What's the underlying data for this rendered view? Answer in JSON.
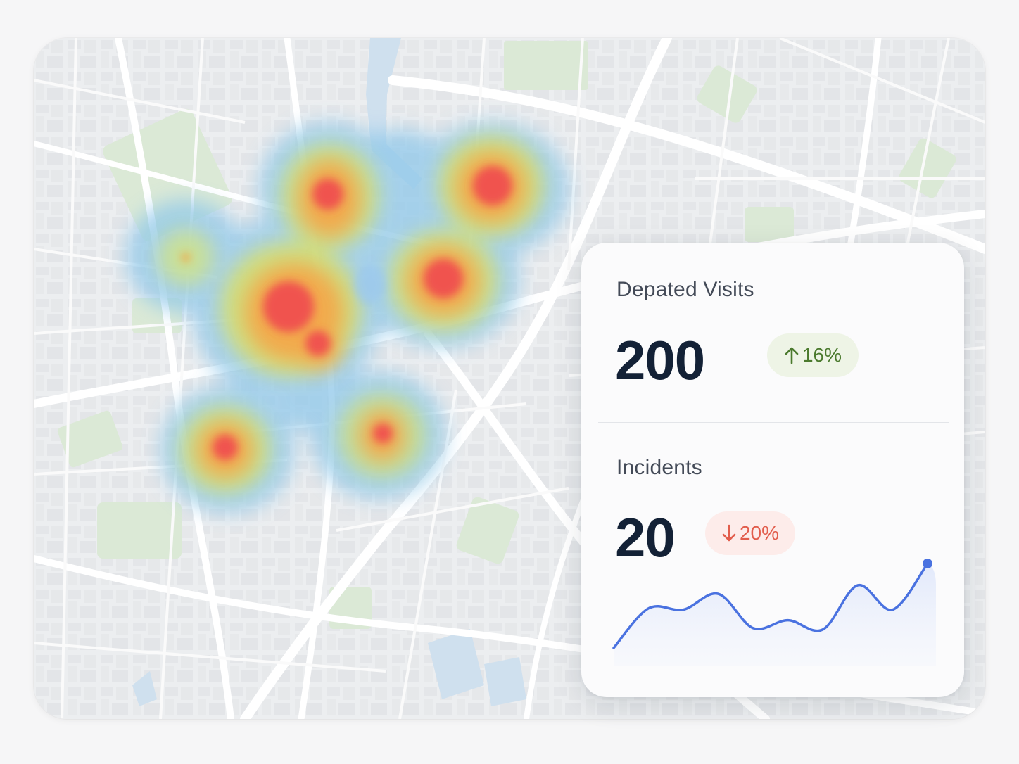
{
  "map": {
    "icon": "heatmap-map"
  },
  "stats": {
    "visits": {
      "label": "Depated Visits",
      "value": "200",
      "change": "16%",
      "trend_icon": "arrow-up-icon",
      "trend_color": "#4b7a2e"
    },
    "incidents": {
      "label": "Incidents",
      "value": "20",
      "change": "20%",
      "trend_icon": "arrow-down-icon",
      "trend_color": "#e25d4c"
    }
  },
  "sparkline": {
    "color": "#4a72e0",
    "values": [
      0.0,
      0.6,
      0.58,
      0.82,
      0.3,
      0.42,
      0.28,
      0.95,
      0.58,
      1.28
    ]
  }
}
